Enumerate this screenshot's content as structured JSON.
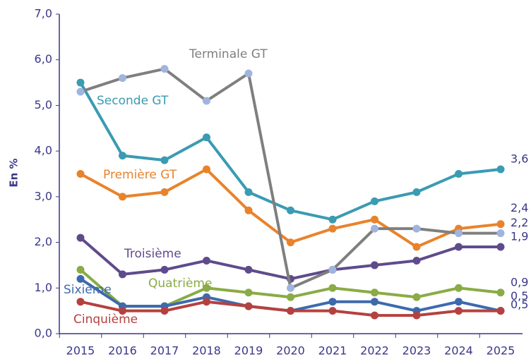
{
  "chart_data": {
    "type": "line",
    "y_label": "En %",
    "categories": [
      "2015",
      "2016",
      "2017",
      "2018",
      "2019",
      "2020",
      "2021",
      "2022",
      "2023",
      "2024",
      "2025"
    ],
    "ylim": [
      0,
      7
    ],
    "yticks": [
      {
        "value": 0,
        "label": "0,0"
      },
      {
        "value": 1,
        "label": "1,0"
      },
      {
        "value": 2,
        "label": "2,0"
      },
      {
        "value": 3,
        "label": "3,0"
      },
      {
        "value": 4,
        "label": "4,0"
      },
      {
        "value": 5,
        "label": "5,0"
      },
      {
        "value": 6,
        "label": "6,0"
      },
      {
        "value": 7,
        "label": "7,0"
      }
    ],
    "grid": false,
    "series": [
      {
        "name": "Seconde GT",
        "color": "#3a9bb2",
        "values": [
          5.5,
          3.9,
          3.8,
          4.3,
          3.1,
          2.7,
          2.5,
          2.9,
          3.1,
          3.5,
          3.6
        ],
        "value_labels": [
          null,
          null,
          null,
          null,
          null,
          null,
          null,
          null,
          null,
          null,
          "3,6"
        ]
      },
      {
        "name": "Première GT",
        "color": "#e8832c",
        "values": [
          3.5,
          3.0,
          3.1,
          3.6,
          2.7,
          2.0,
          2.3,
          2.5,
          1.9,
          2.3,
          2.4
        ],
        "value_labels": [
          null,
          null,
          null,
          null,
          null,
          null,
          null,
          null,
          null,
          null,
          "2,4"
        ]
      },
      {
        "name": "Troisième",
        "color": "#5f4b8b",
        "values": [
          2.1,
          1.3,
          1.4,
          1.6,
          1.4,
          1.2,
          1.4,
          1.5,
          1.6,
          1.9,
          1.9
        ],
        "value_labels": [
          null,
          null,
          null,
          null,
          null,
          null,
          null,
          null,
          null,
          null,
          "1,9"
        ]
      },
      {
        "name": "Quatrième",
        "color": "#8aab45",
        "values": [
          1.4,
          0.6,
          0.6,
          1.0,
          0.9,
          0.8,
          1.0,
          0.9,
          0.8,
          1.0,
          0.9
        ],
        "value_labels": [
          null,
          null,
          null,
          null,
          null,
          null,
          null,
          null,
          null,
          null,
          "0,9"
        ]
      },
      {
        "name": "Sixième",
        "color": "#3d6aad",
        "values": [
          1.2,
          0.6,
          0.6,
          0.8,
          0.6,
          0.5,
          0.7,
          0.7,
          0.5,
          0.7,
          0.5
        ],
        "value_labels": [
          null,
          null,
          null,
          null,
          null,
          null,
          null,
          null,
          null,
          null,
          "0,5"
        ]
      },
      {
        "name": "Cinquième",
        "color": "#b5413f",
        "values": [
          0.7,
          0.5,
          0.5,
          0.7,
          0.6,
          0.5,
          0.5,
          0.4,
          0.4,
          0.5,
          0.5
        ],
        "value_labels": [
          null,
          null,
          null,
          null,
          null,
          null,
          null,
          null,
          null,
          null,
          "0,5"
        ]
      },
      {
        "name": "Terminale GT",
        "color": "#7f7f7f",
        "marker_color": "#9fb4df",
        "values": [
          5.3,
          5.6,
          5.8,
          5.1,
          5.7,
          1.0,
          1.4,
          2.3,
          2.3,
          2.2,
          2.2
        ],
        "value_labels": [
          null,
          null,
          null,
          null,
          null,
          null,
          null,
          null,
          null,
          null,
          "2,2"
        ]
      }
    ]
  }
}
